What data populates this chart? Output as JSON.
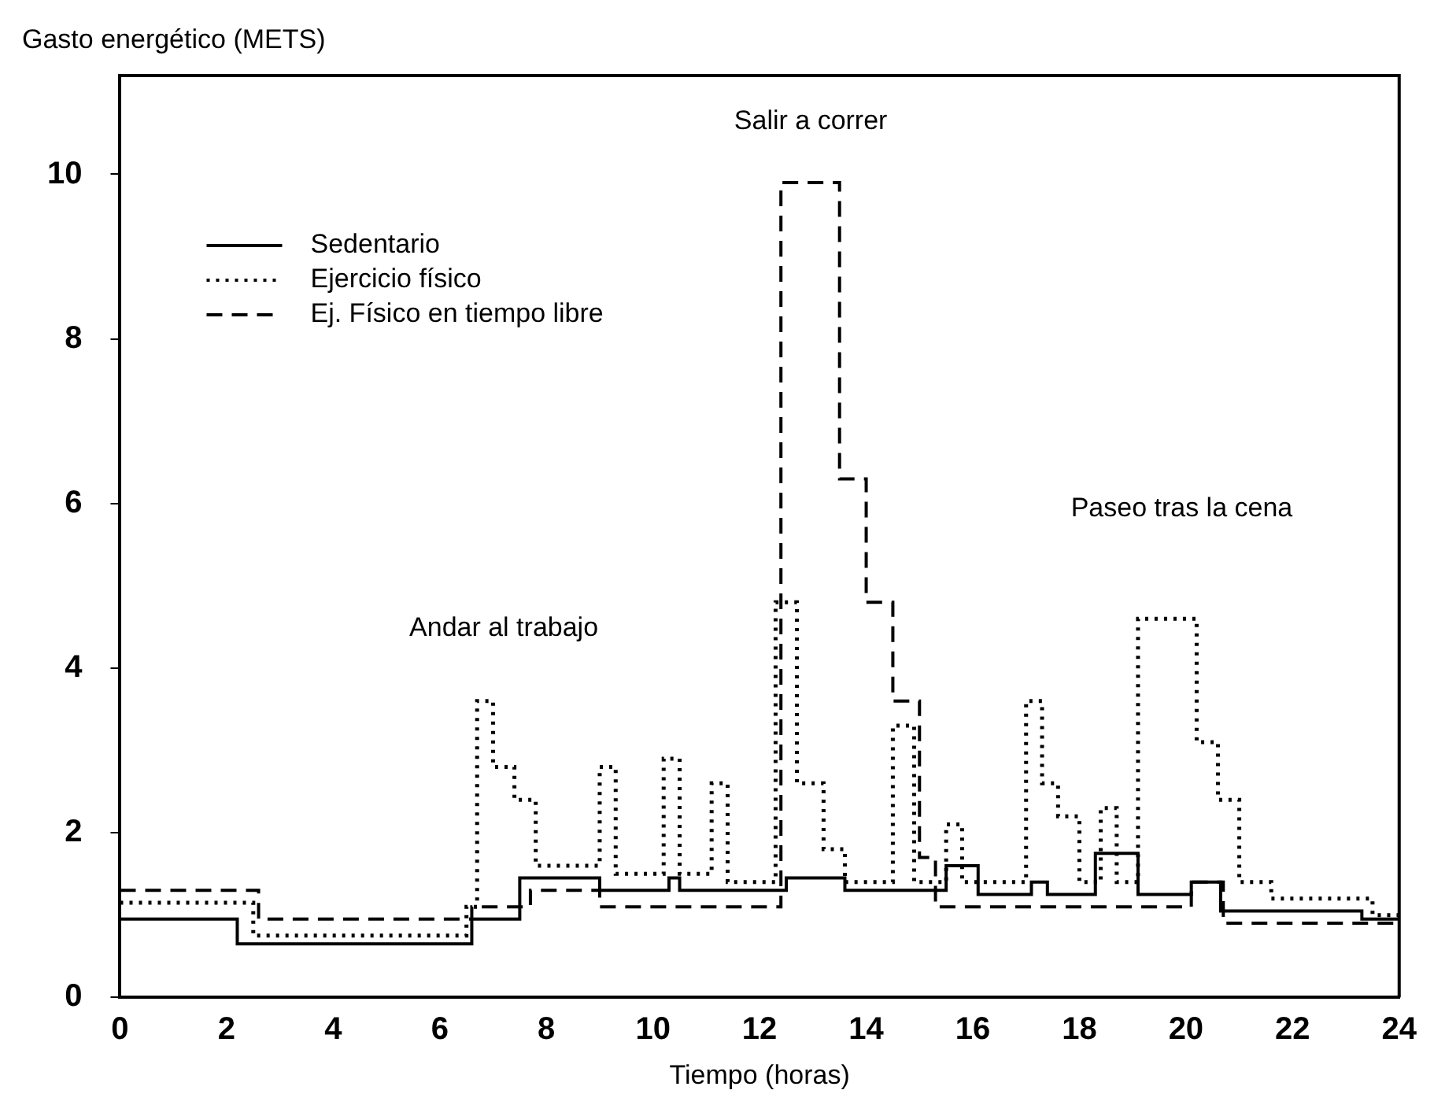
{
  "chart_data": {
    "type": "step",
    "xlabel": "Tiempo (horas)",
    "ylabel": "Gasto energético (METS)",
    "xlim": [
      0,
      24
    ],
    "xticks": [
      0,
      2,
      4,
      6,
      8,
      10,
      12,
      14,
      16,
      18,
      20,
      22,
      24
    ],
    "ylim": [
      0,
      11.2
    ],
    "yticks": [
      0,
      2,
      4,
      6,
      8,
      10
    ],
    "grid": false,
    "legend": "top left",
    "marker": "none",
    "series": [
      {
        "name": "Sedentario",
        "color": "#000000",
        "line_style": "solid",
        "x": [
          0,
          2.2,
          6.6,
          7.5,
          9,
          10.3,
          10.5,
          12.5,
          13.6,
          15.5,
          16.1,
          17.1,
          17.4,
          18.3,
          19.1,
          20.1,
          20.65,
          23.3,
          24
        ],
        "values": [
          0.95,
          0.65,
          0.95,
          1.45,
          1.3,
          1.45,
          1.3,
          1.45,
          1.3,
          1.6,
          1.25,
          1.4,
          1.25,
          1.75,
          1.25,
          1.4,
          1.05,
          0.95,
          0.95
        ]
      },
      {
        "name": "Ejercicio físico",
        "color": "#000000",
        "line_style": "dotted",
        "x": [
          0,
          2.5,
          6.5,
          6.7,
          7.0,
          7.4,
          7.8,
          9.0,
          9.3,
          10.2,
          10.5,
          11.1,
          11.4,
          12.3,
          12.7,
          13.2,
          13.6,
          14.5,
          14.9,
          15.5,
          15.8,
          17.0,
          17.3,
          17.6,
          18.0,
          18.4,
          18.7,
          19.1,
          20.2,
          20.6,
          21.0,
          21.6,
          23.5,
          24
        ],
        "values": [
          1.15,
          0.75,
          1.1,
          3.6,
          2.8,
          2.4,
          1.6,
          2.8,
          1.5,
          2.9,
          1.5,
          2.6,
          1.4,
          4.8,
          2.6,
          1.8,
          1.4,
          3.3,
          1.4,
          2.1,
          1.4,
          3.6,
          2.6,
          2.2,
          1.4,
          2.3,
          1.4,
          4.6,
          3.1,
          2.4,
          1.4,
          1.2,
          1.0,
          1.0
        ]
      },
      {
        "name": "Ej. Físico en tiempo libre",
        "color": "#000000",
        "line_style": "dashed",
        "x": [
          0,
          2.6,
          6.6,
          7.7,
          9,
          12.4,
          13.5,
          14.0,
          14.5,
          15.0,
          15.3,
          20.1,
          20.7,
          24
        ],
        "values": [
          1.3,
          0.95,
          1.1,
          1.3,
          1.1,
          9.9,
          6.3,
          4.8,
          3.6,
          1.7,
          1.1,
          1.4,
          0.9,
          0.9
        ]
      }
    ],
    "annotations": [
      "Salir a correr",
      "Andar al trabajo",
      "Paseo tras la cena"
    ]
  }
}
